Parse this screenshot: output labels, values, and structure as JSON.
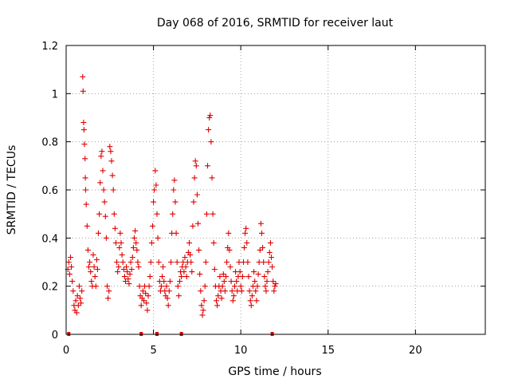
{
  "chart_data": {
    "type": "scatter",
    "title": "Day 068 of 2016, SRMTID for receiver laut",
    "xlabel": "GPS time / hours",
    "ylabel": "SRMTID / TECUs",
    "xlim": [
      0,
      24
    ],
    "ylim": [
      0,
      1.2
    ],
    "x_ticks": [
      0,
      5,
      10,
      15,
      20
    ],
    "x_tick_labels": [
      "0",
      "5",
      "10",
      "15",
      "20"
    ],
    "y_ticks": [
      0,
      0.2,
      0.4,
      0.6,
      0.8,
      1.0,
      1.2
    ],
    "y_tick_labels": [
      "0",
      "0.2",
      "0.4",
      "0.6",
      "0.8",
      "1",
      "1.2"
    ],
    "grid": true,
    "marker": "+",
    "color": "#e00000",
    "series": [
      {
        "name": "SRMTID",
        "points": [
          [
            0.1,
            0.27
          ],
          [
            0.15,
            0.3
          ],
          [
            0.2,
            0.25
          ],
          [
            0.25,
            0.32
          ],
          [
            0.3,
            0.28
          ],
          [
            0.35,
            0.22
          ],
          [
            0.4,
            0.18
          ],
          [
            0.45,
            0.12
          ],
          [
            0.5,
            0.1
          ],
          [
            0.55,
            0.14
          ],
          [
            0.6,
            0.09
          ],
          [
            0.65,
            0.16
          ],
          [
            0.7,
            0.12
          ],
          [
            0.75,
            0.2
          ],
          [
            0.8,
            0.15
          ],
          [
            0.85,
            0.13
          ],
          [
            0.9,
            0.18
          ],
          [
            0.95,
            1.07
          ],
          [
            0.97,
            1.01
          ],
          [
            1.0,
            0.88
          ],
          [
            1.02,
            0.85
          ],
          [
            1.05,
            0.79
          ],
          [
            1.08,
            0.73
          ],
          [
            1.1,
            0.65
          ],
          [
            1.12,
            0.6
          ],
          [
            1.15,
            0.54
          ],
          [
            1.2,
            0.45
          ],
          [
            1.25,
            0.35
          ],
          [
            1.3,
            0.28
          ],
          [
            1.35,
            0.3
          ],
          [
            1.4,
            0.26
          ],
          [
            1.45,
            0.22
          ],
          [
            1.5,
            0.2
          ],
          [
            1.55,
            0.33
          ],
          [
            1.6,
            0.28
          ],
          [
            1.65,
            0.24
          ],
          [
            1.7,
            0.2
          ],
          [
            1.75,
            0.31
          ],
          [
            1.8,
            0.27
          ],
          [
            1.85,
            0.42
          ],
          [
            1.9,
            0.5
          ],
          [
            1.95,
            0.63
          ],
          [
            2.0,
            0.74
          ],
          [
            2.05,
            0.76
          ],
          [
            2.1,
            0.68
          ],
          [
            2.15,
            0.6
          ],
          [
            2.2,
            0.55
          ],
          [
            2.25,
            0.49
          ],
          [
            2.3,
            0.4
          ],
          [
            2.35,
            0.2
          ],
          [
            2.4,
            0.15
          ],
          [
            2.45,
            0.18
          ],
          [
            2.5,
            0.78
          ],
          [
            2.55,
            0.76
          ],
          [
            2.6,
            0.72
          ],
          [
            2.65,
            0.66
          ],
          [
            2.7,
            0.6
          ],
          [
            2.75,
            0.5
          ],
          [
            2.8,
            0.44
          ],
          [
            2.85,
            0.38
          ],
          [
            2.9,
            0.3
          ],
          [
            2.95,
            0.26
          ],
          [
            3.0,
            0.28
          ],
          [
            3.05,
            0.36
          ],
          [
            3.1,
            0.42
          ],
          [
            3.15,
            0.38
          ],
          [
            3.2,
            0.33
          ],
          [
            3.25,
            0.3
          ],
          [
            3.3,
            0.27
          ],
          [
            3.35,
            0.24
          ],
          [
            3.4,
            0.22
          ],
          [
            3.45,
            0.28
          ],
          [
            3.5,
            0.26
          ],
          [
            3.55,
            0.23
          ],
          [
            3.6,
            0.21
          ],
          [
            3.65,
            0.25
          ],
          [
            3.7,
            0.3
          ],
          [
            3.75,
            0.27
          ],
          [
            3.8,
            0.32
          ],
          [
            3.85,
            0.36
          ],
          [
            3.9,
            0.4
          ],
          [
            3.95,
            0.43
          ],
          [
            4.0,
            0.38
          ],
          [
            4.05,
            0.35
          ],
          [
            4.1,
            0.3
          ],
          [
            4.15,
            0.28
          ],
          [
            4.2,
            0.2
          ],
          [
            4.25,
            0.16
          ],
          [
            4.3,
            0.12
          ],
          [
            4.35,
            0.15
          ],
          [
            4.4,
            0.18
          ],
          [
            4.45,
            0.14
          ],
          [
            4.5,
            0.2
          ],
          [
            4.55,
            0.17
          ],
          [
            4.6,
            0.13
          ],
          [
            4.65,
            0.1
          ],
          [
            4.7,
            0.16
          ],
          [
            4.75,
            0.2
          ],
          [
            4.8,
            0.24
          ],
          [
            4.85,
            0.3
          ],
          [
            4.9,
            0.38
          ],
          [
            4.95,
            0.45
          ],
          [
            5.0,
            0.55
          ],
          [
            5.05,
            0.6
          ],
          [
            5.1,
            0.68
          ],
          [
            5.15,
            0.62
          ],
          [
            5.2,
            0.5
          ],
          [
            5.25,
            0.4
          ],
          [
            5.3,
            0.3
          ],
          [
            5.35,
            0.22
          ],
          [
            5.4,
            0.18
          ],
          [
            5.45,
            0.2
          ],
          [
            5.5,
            0.24
          ],
          [
            5.55,
            0.28
          ],
          [
            5.6,
            0.22
          ],
          [
            5.65,
            0.18
          ],
          [
            5.7,
            0.16
          ],
          [
            5.75,
            0.2
          ],
          [
            5.8,
            0.15
          ],
          [
            5.85,
            0.12
          ],
          [
            5.9,
            0.18
          ],
          [
            5.95,
            0.22
          ],
          [
            6.0,
            0.3
          ],
          [
            6.05,
            0.42
          ],
          [
            6.1,
            0.5
          ],
          [
            6.15,
            0.6
          ],
          [
            6.2,
            0.64
          ],
          [
            6.25,
            0.55
          ],
          [
            6.3,
            0.42
          ],
          [
            6.35,
            0.3
          ],
          [
            6.4,
            0.2
          ],
          [
            6.45,
            0.16
          ],
          [
            6.5,
            0.22
          ],
          [
            6.55,
            0.26
          ],
          [
            6.6,
            0.24
          ],
          [
            6.65,
            0.28
          ],
          [
            6.7,
            0.3
          ],
          [
            6.75,
            0.26
          ],
          [
            6.8,
            0.32
          ],
          [
            6.85,
            0.28
          ],
          [
            6.9,
            0.24
          ],
          [
            6.95,
            0.3
          ],
          [
            7.0,
            0.34
          ],
          [
            7.05,
            0.38
          ],
          [
            7.1,
            0.33
          ],
          [
            7.15,
            0.3
          ],
          [
            7.2,
            0.26
          ],
          [
            7.25,
            0.45
          ],
          [
            7.3,
            0.55
          ],
          [
            7.35,
            0.65
          ],
          [
            7.4,
            0.72
          ],
          [
            7.45,
            0.7
          ],
          [
            7.5,
            0.58
          ],
          [
            7.55,
            0.46
          ],
          [
            7.6,
            0.35
          ],
          [
            7.65,
            0.25
          ],
          [
            7.7,
            0.18
          ],
          [
            7.75,
            0.12
          ],
          [
            7.8,
            0.08
          ],
          [
            7.85,
            0.1
          ],
          [
            7.9,
            0.14
          ],
          [
            7.95,
            0.2
          ],
          [
            8.0,
            0.3
          ],
          [
            8.05,
            0.5
          ],
          [
            8.1,
            0.7
          ],
          [
            8.15,
            0.85
          ],
          [
            8.2,
            0.9
          ],
          [
            8.25,
            0.91
          ],
          [
            8.3,
            0.8
          ],
          [
            8.35,
            0.65
          ],
          [
            8.4,
            0.5
          ],
          [
            8.45,
            0.38
          ],
          [
            8.5,
            0.27
          ],
          [
            8.55,
            0.2
          ],
          [
            8.6,
            0.14
          ],
          [
            8.65,
            0.12
          ],
          [
            8.7,
            0.16
          ],
          [
            8.75,
            0.2
          ],
          [
            8.8,
            0.24
          ],
          [
            8.85,
            0.18
          ],
          [
            8.9,
            0.15
          ],
          [
            8.95,
            0.2
          ],
          [
            9.0,
            0.25
          ],
          [
            9.05,
            0.22
          ],
          [
            9.1,
            0.18
          ],
          [
            9.15,
            0.24
          ],
          [
            9.2,
            0.3
          ],
          [
            9.25,
            0.36
          ],
          [
            9.3,
            0.42
          ],
          [
            9.35,
            0.35
          ],
          [
            9.4,
            0.28
          ],
          [
            9.45,
            0.22
          ],
          [
            9.5,
            0.18
          ],
          [
            9.55,
            0.14
          ],
          [
            9.6,
            0.16
          ],
          [
            9.65,
            0.2
          ],
          [
            9.7,
            0.26
          ],
          [
            9.75,
            0.22
          ],
          [
            9.8,
            0.18
          ],
          [
            9.85,
            0.24
          ],
          [
            9.9,
            0.3
          ],
          [
            9.95,
            0.26
          ],
          [
            10.0,
            0.2
          ],
          [
            10.05,
            0.18
          ],
          [
            10.1,
            0.24
          ],
          [
            10.15,
            0.3
          ],
          [
            10.2,
            0.36
          ],
          [
            10.25,
            0.42
          ],
          [
            10.3,
            0.44
          ],
          [
            10.35,
            0.38
          ],
          [
            10.4,
            0.3
          ],
          [
            10.45,
            0.24
          ],
          [
            10.5,
            0.18
          ],
          [
            10.55,
            0.14
          ],
          [
            10.6,
            0.12
          ],
          [
            10.65,
            0.16
          ],
          [
            10.7,
            0.2
          ],
          [
            10.75,
            0.26
          ],
          [
            10.8,
            0.22
          ],
          [
            10.85,
            0.18
          ],
          [
            10.9,
            0.14
          ],
          [
            10.95,
            0.2
          ],
          [
            11.0,
            0.25
          ],
          [
            11.05,
            0.3
          ],
          [
            11.1,
            0.35
          ],
          [
            11.15,
            0.46
          ],
          [
            11.2,
            0.42
          ],
          [
            11.25,
            0.36
          ],
          [
            11.3,
            0.3
          ],
          [
            11.35,
            0.24
          ],
          [
            11.4,
            0.2
          ],
          [
            11.45,
            0.18
          ],
          [
            11.5,
            0.22
          ],
          [
            11.55,
            0.26
          ],
          [
            11.6,
            0.3
          ],
          [
            11.65,
            0.34
          ],
          [
            11.7,
            0.38
          ],
          [
            11.75,
            0.32
          ],
          [
            11.8,
            0.28
          ],
          [
            11.85,
            0.22
          ],
          [
            11.9,
            0.18
          ],
          [
            11.95,
            0.2
          ],
          [
            12.0,
            0.21
          ]
        ]
      }
    ],
    "zero_markers_x": [
      0.15,
      4.3,
      5.2,
      6.6,
      11.8
    ]
  }
}
